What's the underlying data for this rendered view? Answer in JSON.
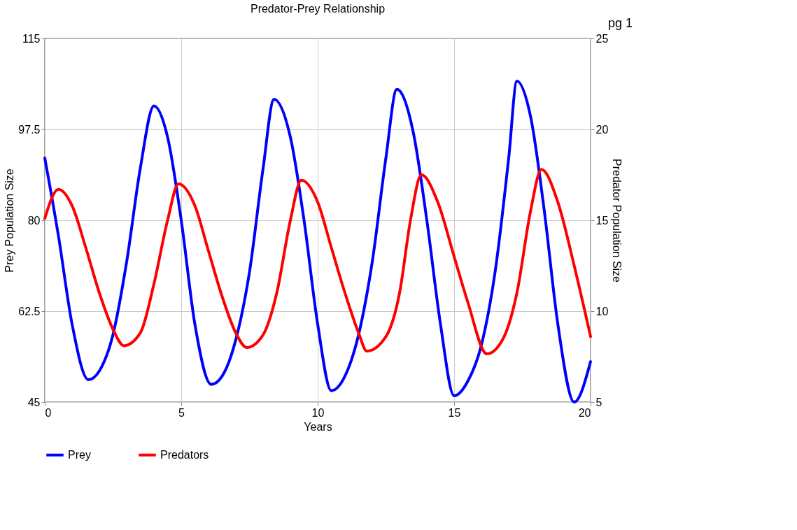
{
  "chart_data": {
    "type": "line",
    "title": "Predator-Prey Relationship",
    "xlabel": "Years",
    "ylabel": "Prey Population Size",
    "y2label": "Predator Population Size",
    "annotations": [
      "pg 1"
    ],
    "xlim": [
      0,
      20
    ],
    "xticks": [
      0,
      5,
      10,
      15,
      20
    ],
    "ylim": [
      45,
      115
    ],
    "yticks": [
      45,
      62.5,
      80,
      97.5,
      115
    ],
    "y2lim": [
      5,
      25
    ],
    "y2ticks": [
      5,
      10,
      15,
      20,
      25
    ],
    "grid": true,
    "legend": "bottom",
    "line_style": "solid",
    "series": [
      {
        "name": "Prey",
        "color": "#0000ff",
        "x": [
          0,
          0.5,
          1.0,
          1.6,
          2.0,
          2.5,
          3.0,
          3.5,
          4.0,
          4.5,
          5.0,
          5.5,
          6.1,
          6.5,
          7.0,
          7.5,
          8.0,
          8.4,
          9.0,
          9.5,
          10.0,
          10.5,
          11.0,
          11.5,
          12.0,
          12.5,
          12.9,
          13.5,
          14.0,
          14.5,
          15.0,
          15.5,
          16.0,
          16.5,
          17.0,
          17.3,
          17.8,
          18.3,
          18.8,
          19.4,
          20.0
        ],
        "values": [
          92,
          77,
          60,
          49.3,
          51,
          58,
          72,
          90,
          102,
          96,
          80,
          60,
          48.4,
          50,
          57,
          70,
          90,
          103.3,
          96,
          80,
          60,
          47.2,
          50,
          58,
          72,
          92,
          105.2,
          97,
          80,
          60,
          46.2,
          49,
          56,
          70,
          92,
          106.8,
          100,
          82,
          60,
          45,
          52.8
        ]
      },
      {
        "name": "Predators",
        "color": "#ff0000",
        "axis": "y2",
        "x": [
          0,
          0.5,
          1.0,
          1.5,
          2.0,
          2.5,
          2.9,
          3.5,
          4.0,
          4.5,
          4.9,
          5.5,
          6.0,
          6.5,
          7.0,
          7.4,
          8.0,
          8.5,
          9.0,
          9.4,
          10.0,
          10.5,
          11.0,
          11.5,
          11.8,
          12.5,
          13.0,
          13.4,
          13.8,
          14.4,
          15.0,
          15.5,
          16.2,
          16.8,
          17.3,
          17.8,
          18.2,
          18.8,
          19.4,
          20.0
        ],
        "values": [
          15.1,
          16.7,
          15.8,
          13.5,
          11,
          9,
          8.1,
          8.8,
          11.5,
          15,
          17.0,
          15.8,
          13.3,
          10.8,
          8.8,
          8.0,
          8.7,
          11,
          15,
          17.2,
          16,
          13.5,
          11,
          8.8,
          7.8,
          8.6,
          11,
          15,
          17.5,
          16,
          13,
          10.5,
          7.65,
          8.5,
          11,
          15.5,
          17.8,
          16,
          12.5,
          8.6
        ]
      }
    ]
  }
}
